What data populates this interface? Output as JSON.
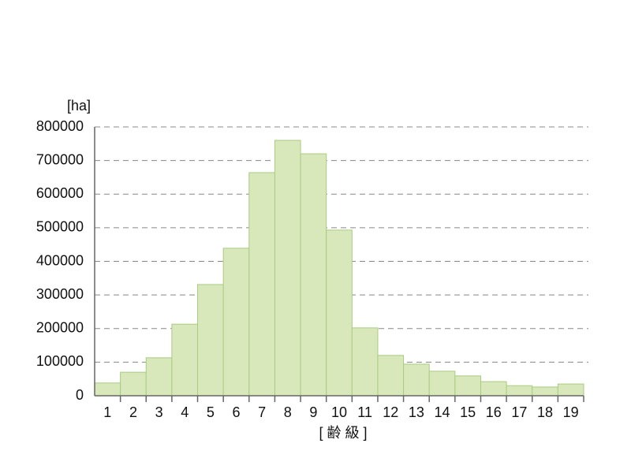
{
  "chart_data": {
    "type": "bar",
    "y_label": "[ha]",
    "x_label": "[ 齢 級 ]",
    "categories": [
      "1",
      "2",
      "3",
      "4",
      "5",
      "6",
      "7",
      "8",
      "9",
      "10",
      "11",
      "12",
      "13",
      "14",
      "15",
      "16",
      "17",
      "18",
      "19"
    ],
    "values": [
      38000,
      70000,
      113000,
      213000,
      331000,
      439000,
      664000,
      760000,
      720000,
      493000,
      202000,
      120000,
      94000,
      73000,
      59000,
      42000,
      30000,
      26000,
      35000
    ],
    "color": "#d9e8bb",
    "ylim": [
      0,
      800000
    ],
    "yticks": [
      0,
      100000,
      200000,
      300000,
      400000,
      500000,
      600000,
      700000,
      800000
    ],
    "grid": true
  }
}
